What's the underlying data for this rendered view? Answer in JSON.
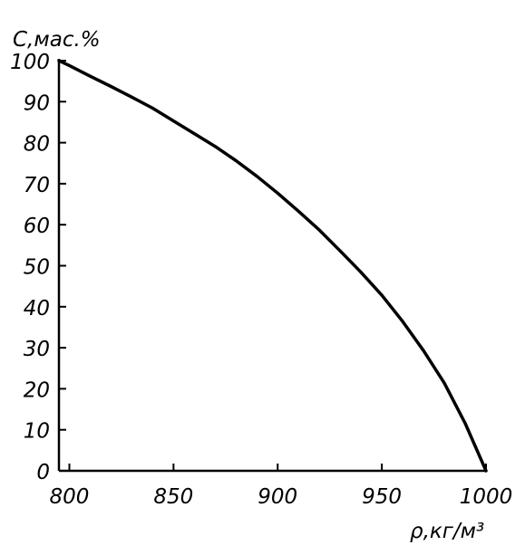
{
  "chart_data": {
    "type": "line",
    "title": "",
    "xlabel": "ρ,кг/м³",
    "ylabel": "C,мас.%",
    "xlim": [
      795,
      1000
    ],
    "ylim": [
      0,
      100
    ],
    "xticks": [
      800,
      850,
      900,
      950,
      1000
    ],
    "yticks": [
      0,
      10,
      20,
      30,
      40,
      50,
      60,
      70,
      80,
      90,
      100
    ],
    "grid": false,
    "legend": "none",
    "series": [
      {
        "x": [
          795,
          800,
          810,
          820,
          830,
          840,
          850,
          860,
          870,
          880,
          890,
          900,
          910,
          920,
          930,
          940,
          950,
          960,
          970,
          980,
          990,
          1000
        ],
        "y": [
          100,
          98.8,
          96.2,
          93.7,
          91.1,
          88.4,
          85.3,
          82.2,
          79.1,
          75.6,
          71.8,
          67.7,
          63.3,
          58.7,
          53.6,
          48.4,
          42.8,
          36.4,
          29.3,
          21.4,
          11.6,
          0
        ]
      }
    ],
    "colors": {
      "line": "#000000",
      "axis": "#000000",
      "background": "#ffffff"
    }
  }
}
